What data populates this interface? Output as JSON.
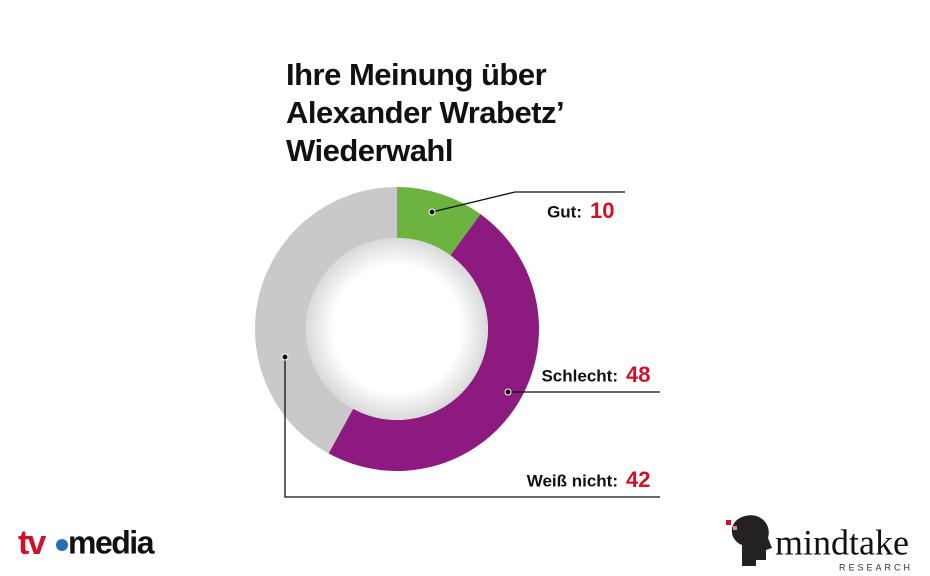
{
  "chart_data": {
    "type": "donut",
    "title": [
      "Ihre Meinung über",
      "Alexander Wrabetz’",
      "Wiederwahl"
    ],
    "categories": [
      "Gut:",
      "Schlecht:",
      "Weiß nicht:"
    ],
    "values": [
      10,
      48,
      42
    ],
    "colors": [
      "#6cb33f",
      "#8c1a7f",
      "#c9c9c9"
    ]
  },
  "logo_left": {
    "first": "tv",
    "second": "media"
  },
  "logo_right": {
    "name": "mindtake",
    "sub": "RESEARCH"
  }
}
